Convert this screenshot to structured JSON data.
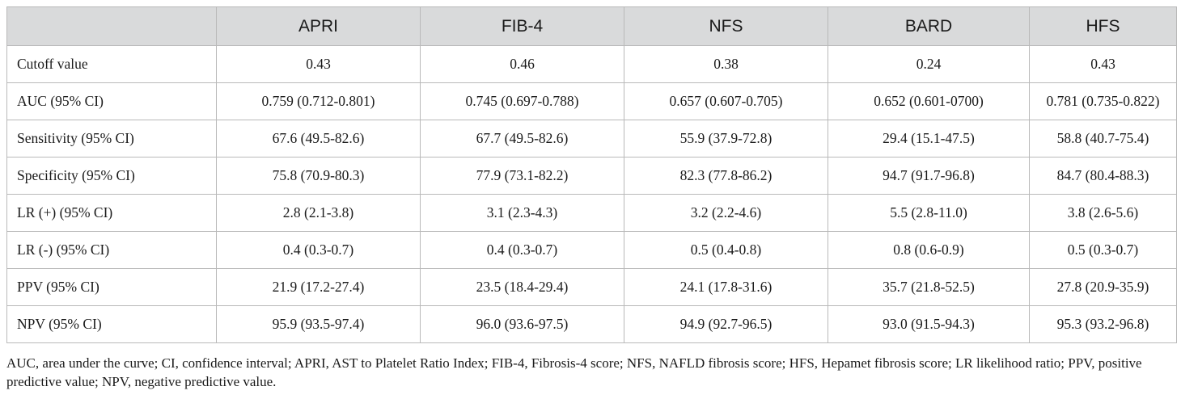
{
  "table": {
    "headers": [
      "",
      "APRI",
      "FIB-4",
      "NFS",
      "BARD",
      "HFS"
    ],
    "rows": [
      {
        "label": "Cutoff value",
        "values": [
          "0.43",
          "0.46",
          "0.38",
          "0.24",
          "0.43"
        ]
      },
      {
        "label": "AUC (95% CI)",
        "values": [
          "0.759 (0.712-0.801)",
          "0.745 (0.697-0.788)",
          "0.657 (0.607-0.705)",
          "0.652 (0.601-0700)",
          "0.781 (0.735-0.822)"
        ]
      },
      {
        "label": "Sensitivity (95% CI)",
        "values": [
          "67.6 (49.5-82.6)",
          "67.7 (49.5-82.6)",
          "55.9 (37.9-72.8)",
          "29.4 (15.1-47.5)",
          "58.8 (40.7-75.4)"
        ]
      },
      {
        "label": "Specificity (95% CI)",
        "values": [
          "75.8 (70.9-80.3)",
          "77.9 (73.1-82.2)",
          "82.3 (77.8-86.2)",
          "94.7 (91.7-96.8)",
          "84.7 (80.4-88.3)"
        ]
      },
      {
        "label": "LR (+) (95% CI)",
        "values": [
          "2.8 (2.1-3.8)",
          "3.1 (2.3-4.3)",
          "3.2 (2.2-4.6)",
          "5.5 (2.8-11.0)",
          "3.8 (2.6-5.6)"
        ]
      },
      {
        "label": "LR (-) (95% CI)",
        "values": [
          "0.4 (0.3-0.7)",
          "0.4 (0.3-0.7)",
          "0.5 (0.4-0.8)",
          "0.8 (0.6-0.9)",
          "0.5 (0.3-0.7)"
        ]
      },
      {
        "label": "PPV (95% CI)",
        "values": [
          "21.9 (17.2-27.4)",
          "23.5 (18.4-29.4)",
          "24.1 (17.8-31.6)",
          "35.7 (21.8-52.5)",
          "27.8 (20.9-35.9)"
        ]
      },
      {
        "label": "NPV (95% CI)",
        "values": [
          "95.9 (93.5-97.4)",
          "96.0 (93.6-97.5)",
          "94.9 (92.7-96.5)",
          "93.0 (91.5-94.3)",
          "95.3 (93.2-96.8)"
        ]
      }
    ]
  },
  "footnote": "AUC, area under the curve; CI, confidence interval; APRI, AST to Platelet Ratio Index; FIB-4, Fibrosis-4 score; NFS, NAFLD fibrosis score; HFS, Hepamet fibrosis score; LR likelihood ratio; PPV, positive predictive value; NPV, negative predictive value.",
  "colors": {
    "header_background": "#d9dadb",
    "border": "#b9b9b9",
    "text": "#1a1a1a"
  }
}
